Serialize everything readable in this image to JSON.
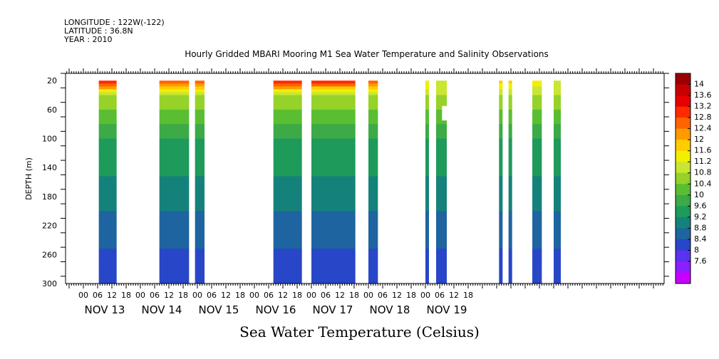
{
  "header": {
    "longitude": "LONGITUDE : 122W(-122)",
    "latitude": "LATITUDE : 36.8N",
    "year": "YEAR : 2010"
  },
  "chart_data": {
    "type": "heatmap",
    "title": "Hourly Gridded MBARI Mooring M1 Sea Water Temperature and Salinity Observations",
    "xlabel": "Sea Water Temperature (Celsius)",
    "ylabel": "DEPTH (m)",
    "x_hour_range": [
      -24,
      144
    ],
    "x_hour_ticks": [
      "00",
      "06",
      "12",
      "18",
      "00",
      "06",
      "12",
      "18",
      "00",
      "06",
      "12",
      "18",
      "00",
      "06",
      "12",
      "18",
      "00",
      "06",
      "12",
      "18",
      "00",
      "06",
      "12",
      "18",
      "00",
      "06",
      "12",
      "18"
    ],
    "day_labels": [
      "NOV 13",
      "NOV 14",
      "NOV 15",
      "NOV 16",
      "NOV 17",
      "NOV 18",
      "NOV 19"
    ],
    "ylim": [
      300,
      10
    ],
    "y_ticks": [
      20,
      60,
      100,
      140,
      180,
      220,
      260,
      300
    ],
    "colorbar": {
      "levels": [
        "14",
        "13.6",
        "13.2",
        "12.8",
        "12.4",
        "12",
        "11.6",
        "11.2",
        "10.8",
        "10.4",
        "10",
        "9.6",
        "9.2",
        "8.8",
        "8.4",
        "8",
        "7.6"
      ],
      "colors": [
        "#9b0000",
        "#c80000",
        "#e60000",
        "#ff2a00",
        "#ff6400",
        "#ff9a00",
        "#ffcc00",
        "#f0f000",
        "#c8e632",
        "#96d228",
        "#5abe32",
        "#3caa46",
        "#1e9a5a",
        "#14827a",
        "#1e64a0",
        "#2846c8",
        "#5a32f0",
        "#8c1eff",
        "#c800ff"
      ]
    },
    "segments_hours": [
      {
        "start": 6.5,
        "end": 14,
        "surface_temp": 13.2
      },
      {
        "start": 32,
        "end": 44.5,
        "surface_temp": 12.8
      },
      {
        "start": 47,
        "end": 51,
        "surface_temp": 12.8
      },
      {
        "start": 80,
        "end": 92,
        "surface_temp": 13.0
      },
      {
        "start": 96,
        "end": 114.5,
        "surface_temp": 12.9
      },
      {
        "start": 120,
        "end": 124,
        "surface_temp": 12.8
      },
      {
        "start": 144,
        "end": 145.5,
        "surface_temp": 11.4
      },
      {
        "start": 148.5,
        "end": 153,
        "surface_temp": 10.9,
        "gap_depth": [
          55,
          75
        ],
        "gap_hour_range": [
          151,
          153
        ]
      },
      {
        "start": 175,
        "end": 176.5,
        "surface_temp": 11.6
      },
      {
        "start": 179,
        "end": 180.5,
        "surface_temp": 11.6
      },
      {
        "start": 189,
        "end": 193,
        "surface_temp": 11.2
      },
      {
        "start": 198,
        "end": 201,
        "surface_temp": 11.0
      }
    ]
  }
}
